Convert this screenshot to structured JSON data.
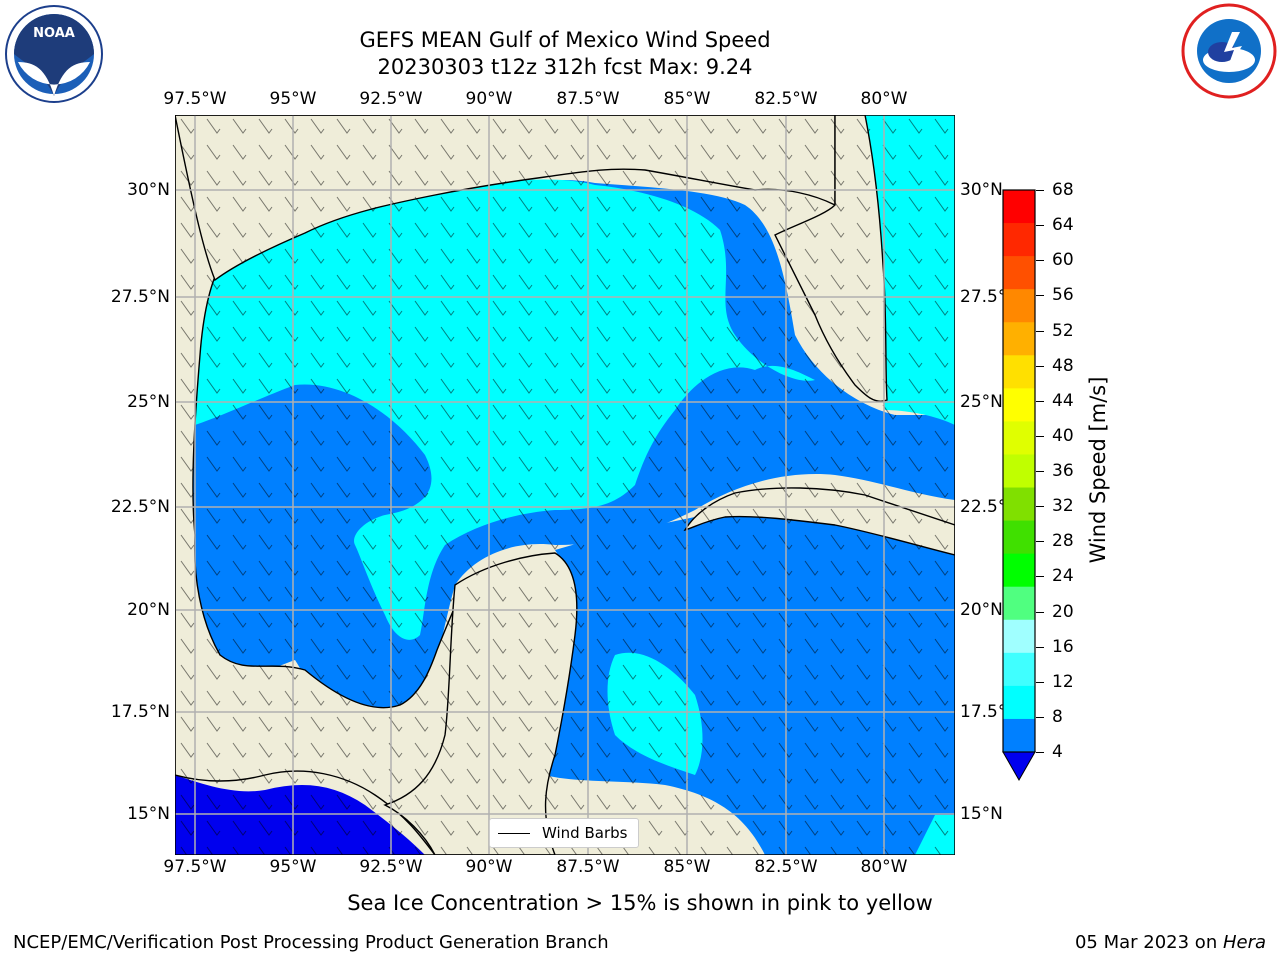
{
  "title_line1": "GEFS MEAN Gulf of Mexico Wind Speed",
  "title_line2": "20230303 t12z 312h fcst   Max: 9.24",
  "logos": {
    "left": "noaa-logo",
    "right": "nws-logo"
  },
  "lon_ticks": [
    "97.5°W",
    "95°W",
    "92.5°W",
    "90°W",
    "87.5°W",
    "85°W",
    "82.5°W",
    "80°W"
  ],
  "lat_ticks": [
    "30°N",
    "27.5°N",
    "25°N",
    "22.5°N",
    "20°N",
    "17.5°N",
    "15°N"
  ],
  "colorbar": {
    "label": "Wind Speed [m/s]",
    "ticks": [
      "4",
      "8",
      "12",
      "16",
      "20",
      "24",
      "28",
      "32",
      "36",
      "40",
      "44",
      "48",
      "52",
      "56",
      "60",
      "64",
      "68"
    ],
    "colors": [
      "#0080ff",
      "#00ffff",
      "#40ffff",
      "#a0ffff",
      "#50ff80",
      "#00ff00",
      "#40e000",
      "#80e000",
      "#c0ff00",
      "#e0ff00",
      "#ffff00",
      "#ffe000",
      "#ffb000",
      "#ff8800",
      "#ff5000",
      "#ff2800",
      "#ff0000"
    ],
    "under_color": "#0000ee"
  },
  "legend_label": "Wind Barbs",
  "colors": {
    "land": "#efedd9",
    "ocean_low": "#0080ff",
    "ocean_mid": "#00ffff",
    "ocean_calm": "#0000ee"
  },
  "sea_ice_note": "Sea Ice Concentration > 15% is shown in pink to yellow",
  "footer_left": "NCEP/EMC/Verification Post Processing Product Generation Branch",
  "footer_date": "05 Mar 2023 on ",
  "footer_machine": "Hera"
}
